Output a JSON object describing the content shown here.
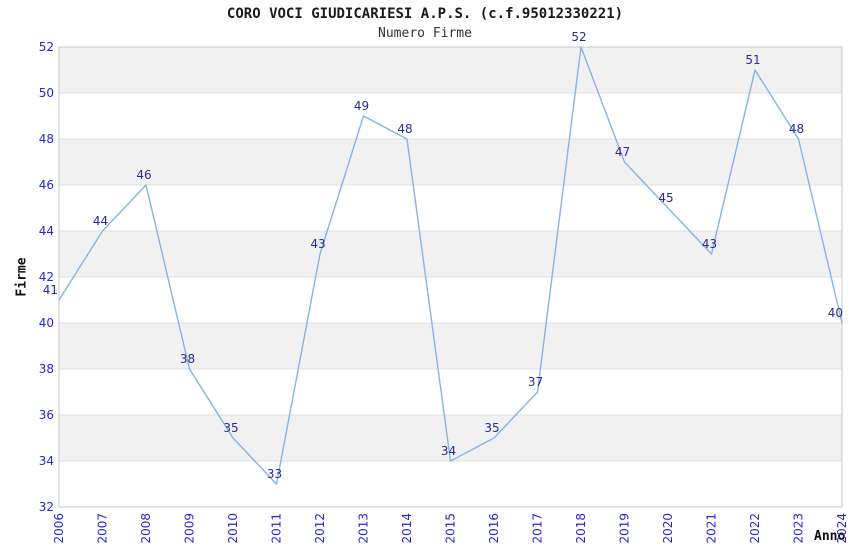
{
  "page": {
    "background": "#ffffff"
  },
  "chart_data": {
    "type": "line",
    "title": "CORO VOCI GIUDICARIESI A.P.S. (c.f.95012330221)",
    "subtitle": "Numero Firme",
    "xlabel": "Anno",
    "ylabel": "Firme",
    "categories": [
      "2006",
      "2007",
      "2008",
      "2009",
      "2010",
      "2011",
      "2012",
      "2013",
      "2014",
      "2015",
      "2016",
      "2017",
      "2018",
      "2019",
      "2020",
      "2021",
      "2022",
      "2023",
      "2024"
    ],
    "values": [
      41,
      44,
      46,
      38,
      35,
      33,
      43,
      49,
      48,
      34,
      35,
      37,
      52,
      47,
      45,
      43,
      51,
      48,
      40
    ],
    "ylim": [
      32,
      52
    ],
    "ytick_step": 2,
    "yticks": [
      32,
      34,
      36,
      38,
      40,
      42,
      44,
      46,
      48,
      50,
      52
    ],
    "grid": "horizontal-alternating-bands",
    "legend": "none",
    "data_labels_visible": true,
    "colors": {
      "line": "#85b4e8",
      "data_label": "#2b2b96",
      "tick_label": "#2626d9",
      "band_fill": "#f1f1f1",
      "band_alt_fill": "#ffffff",
      "grid_line": "#e0e0e0",
      "plot_border": "#c9c9c9",
      "title": "#1a1a1a",
      "subtitle": "#333333",
      "axis_label": "#111111",
      "background": "#ffffff"
    }
  }
}
